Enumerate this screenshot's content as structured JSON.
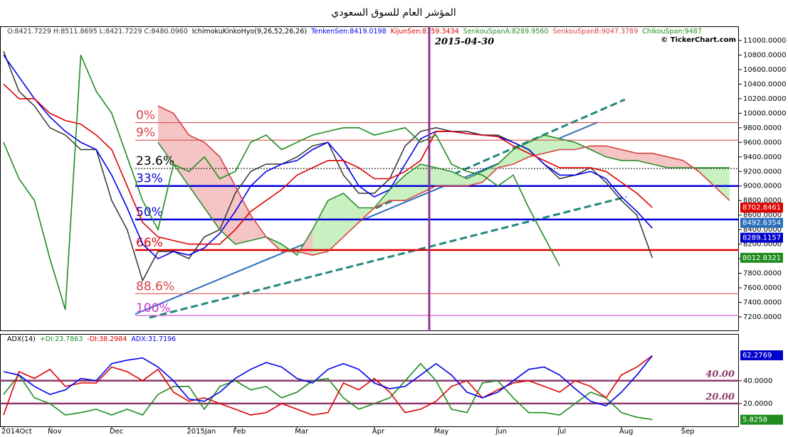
{
  "chart_data": [
    {
      "type": "line",
      "title": "المؤشر العام للسوق السعودي",
      "header": "IchimokuKinkoHyo(9,26,52,26,26)",
      "watermark": "© TickerChart.com",
      "annotations": [
        {
          "label": "2015-04-30",
          "color": "#8b3a8b"
        }
      ],
      "ylim": [
        7005,
        11195
      ],
      "yticks": [
        {
          "value": 7200,
          "label": "7200.0000"
        },
        {
          "value": 7400,
          "label": "7400.0000"
        },
        {
          "value": 7600,
          "label": "7600.0000"
        },
        {
          "value": 7800,
          "label": "7800.0000"
        },
        {
          "value": 8000,
          "label": "8000.0000"
        },
        {
          "value": 8200,
          "label": "8200.0000"
        },
        {
          "value": 8400,
          "label": "8400.0000"
        },
        {
          "value": 8600,
          "label": "8600.0000"
        },
        {
          "value": 8800,
          "label": "8800.0000"
        },
        {
          "value": 9000,
          "label": "9000.0000"
        },
        {
          "value": 9200,
          "label": "9200.0000"
        },
        {
          "value": 9400,
          "label": "9400.0000"
        },
        {
          "value": 9600,
          "label": "9600.0000"
        },
        {
          "value": 9800,
          "label": "9800.0000"
        },
        {
          "value": 10000,
          "label": "10000.0000"
        },
        {
          "value": 10200,
          "label": "10200.0000"
        },
        {
          "value": 10400,
          "label": "10400.0000"
        },
        {
          "value": 10600,
          "label": "10600.0000"
        },
        {
          "value": 10800,
          "label": "10800.0000"
        },
        {
          "value": 11000,
          "label": "11000.0000"
        }
      ],
      "cloud": true,
      "series": [
        {
          "name": "O:8421.7229 H:8511.8695 L:8421.7229 C:8480.0960",
          "color": "#333333",
          "values": [
            10850,
            10300,
            10100,
            9800,
            9700,
            9500,
            9500,
            8800,
            8400,
            7700,
            8100,
            8100,
            8000,
            8300,
            8400,
            8900,
            9200,
            9300,
            9300,
            9400,
            9550,
            9600,
            9150,
            8900,
            8900,
            9100,
            9550,
            9750,
            9800,
            9750,
            9750,
            9700,
            9700,
            9600,
            9500,
            9300,
            9100,
            9150,
            9250,
            9050,
            8800,
            8600,
            8012,
            null,
            null,
            null,
            null,
            null
          ]
        },
        {
          "name": "TenkenSen:8419.0198",
          "color": "#0000ee",
          "values": [
            10800,
            10500,
            10200,
            9950,
            9750,
            9600,
            9500,
            9150,
            8700,
            8200,
            8000,
            8100,
            8050,
            8150,
            8350,
            8650,
            9000,
            9200,
            9300,
            9350,
            9500,
            9600,
            9350,
            9000,
            8850,
            8950,
            9300,
            9650,
            9750,
            9750,
            9720,
            9700,
            9680,
            9600,
            9500,
            9300,
            9150,
            9150,
            9200,
            9100,
            8850,
            8650,
            8419,
            null,
            null,
            null,
            null,
            null
          ]
        },
        {
          "name": "KijunSen:8359.3434",
          "color": "#e00000",
          "values": [
            10400,
            10200,
            10200,
            10000,
            9900,
            9850,
            9700,
            9500,
            9000,
            8500,
            8300,
            8250,
            8200,
            8200,
            8200,
            8400,
            8650,
            8800,
            8950,
            9150,
            9250,
            9350,
            9350,
            9250,
            9100,
            9100,
            9200,
            9350,
            9750,
            9750,
            9720,
            9700,
            9680,
            9550,
            9450,
            9350,
            9250,
            9250,
            9250,
            9200,
            9050,
            8900,
            8703,
            null,
            null,
            null,
            null,
            null
          ]
        },
        {
          "name": "SenkouSpanA:8289.9560",
          "color": "#2e8b2e",
          "values": [
            null,
            null,
            null,
            null,
            null,
            null,
            null,
            null,
            null,
            null,
            9600,
            9300,
            9000,
            8700,
            8400,
            8200,
            8250,
            8300,
            8200,
            8050,
            8400,
            8800,
            8900,
            8700,
            8700,
            8950,
            9150,
            9300,
            9250,
            9200,
            9100,
            9200,
            9300,
            9500,
            9600,
            9700,
            9650,
            9600,
            9500,
            9400,
            9350,
            9350,
            9300,
            9250,
            9250,
            9250,
            9250,
            9250
          ]
        },
        {
          "name": "SenkouSpanB:9047.3789",
          "color": "#d84040",
          "values": [
            null,
            null,
            null,
            null,
            null,
            null,
            null,
            null,
            null,
            null,
            10100,
            10000,
            9700,
            9600,
            9400,
            9000,
            8600,
            8300,
            8100,
            8100,
            8050,
            8100,
            8300,
            8500,
            8700,
            8800,
            8800,
            8900,
            9000,
            9000,
            9000,
            9050,
            9250,
            9300,
            9400,
            9450,
            9500,
            9500,
            9550,
            9550,
            9500,
            9450,
            9450,
            9400,
            9350,
            9200,
            9000,
            8800
          ]
        },
        {
          "name": "ChikouSpan:9487",
          "color": "#1e8c1e",
          "values": [
            9600,
            9100,
            8800,
            8000,
            7300,
            10800,
            10300,
            10000,
            9400,
            8800,
            8400,
            9300,
            9200,
            9400,
            9100,
            9200,
            9600,
            9700,
            9500,
            9600,
            9700,
            9750,
            9800,
            9800,
            9700,
            9750,
            9800,
            9600,
            9700,
            9300,
            9200,
            9150,
            9000,
            9150,
            8700,
            8300,
            7900,
            null,
            null,
            null,
            null,
            null,
            null,
            null,
            null,
            null,
            null,
            null
          ]
        }
      ],
      "levels": [
        {
          "label": "0%",
          "value": 9870,
          "color": "#d84040",
          "style": "thin"
        },
        {
          "label": "9%",
          "value": 9630,
          "color": "#d84040",
          "style": "thin"
        },
        {
          "label": "23.6%",
          "value": 9240,
          "color": "#000000",
          "style": "dotted"
        },
        {
          "label": "33%",
          "value": 9000,
          "color": "#0000dd",
          "style": "thick"
        },
        {
          "label": "50%",
          "value": 8540,
          "color": "#0000dd",
          "style": "thick"
        },
        {
          "label": "66%",
          "value": 8120,
          "color": "#e00000",
          "style": "thick"
        },
        {
          "label": "88.6%",
          "value": 7520,
          "color": "#d84040",
          "style": "thin"
        },
        {
          "label": "100%",
          "value": 7220,
          "color": "#cc33cc",
          "style": "thin"
        }
      ],
      "last_values": [
        8702.8461,
        8492.6354,
        8289.1157,
        8012.8321
      ],
      "last_value_colors": [
        "#e00000",
        "#2a6ebb",
        "#0000cc",
        "#1e8c1e"
      ]
    },
    {
      "type": "line",
      "header": "ADX(14)",
      "ylim": [
        0,
        81
      ],
      "yticks": [
        {
          "value": 20,
          "label": "20.0000"
        },
        {
          "value": 40,
          "label": "40.0000"
        }
      ],
      "categories": [
        "2014Oct",
        null,
        null,
        "Nov",
        null,
        null,
        null,
        "Dec",
        null,
        null,
        null,
        null,
        "2015Jan",
        null,
        null,
        "Feb",
        null,
        null,
        null,
        "Mar",
        null,
        null,
        null,
        null,
        "Apr",
        null,
        null,
        null,
        "May",
        null,
        null,
        null,
        "Jun",
        null,
        null,
        null,
        "Jul",
        null,
        null,
        null,
        "Aug",
        null,
        null,
        null,
        "Sep",
        null,
        null,
        null
      ],
      "series": [
        {
          "name": "+DI:23.7863",
          "color": "#1e8c1e",
          "values": [
            28,
            45,
            25,
            20,
            10,
            12,
            15,
            10,
            15,
            10,
            28,
            35,
            35,
            15,
            35,
            40,
            32,
            35,
            25,
            30,
            40,
            42,
            25,
            15,
            20,
            25,
            40,
            55,
            40,
            15,
            12,
            38,
            40,
            25,
            12,
            12,
            10,
            20,
            30,
            25,
            12,
            8,
            6,
            null,
            null,
            null,
            null,
            null
          ]
        },
        {
          "name": "-DI:38.2984",
          "color": "#e00000",
          "values": [
            10,
            48,
            42,
            50,
            35,
            38,
            38,
            52,
            48,
            40,
            50,
            30,
            22,
            25,
            20,
            15,
            10,
            12,
            20,
            15,
            10,
            12,
            38,
            32,
            42,
            30,
            12,
            15,
            22,
            35,
            40,
            25,
            32,
            38,
            40,
            35,
            30,
            40,
            35,
            25,
            45,
            52,
            62,
            null,
            null,
            null,
            null,
            null
          ]
        },
        {
          "name": "ADX:31.7196",
          "color": "#0000ee",
          "values": [
            48,
            45,
            35,
            28,
            32,
            42,
            40,
            55,
            58,
            60,
            52,
            40,
            24,
            22,
            30,
            42,
            50,
            56,
            52,
            42,
            38,
            50,
            55,
            50,
            38,
            33,
            35,
            45,
            55,
            45,
            30,
            25,
            30,
            40,
            50,
            52,
            45,
            33,
            22,
            18,
            30,
            45,
            62,
            null,
            null,
            null,
            null,
            null
          ]
        }
      ],
      "levels": [
        {
          "label": "40.00",
          "value": 40,
          "color": "#8b3a6b",
          "style": "thick"
        },
        {
          "label": "20.00",
          "value": 20,
          "color": "#8b3a6b",
          "style": "thick"
        }
      ],
      "last_values": [
        62.2769,
        5.8258
      ],
      "last_value_colors": [
        "#0000cc",
        "#1e8c1e"
      ]
    }
  ]
}
